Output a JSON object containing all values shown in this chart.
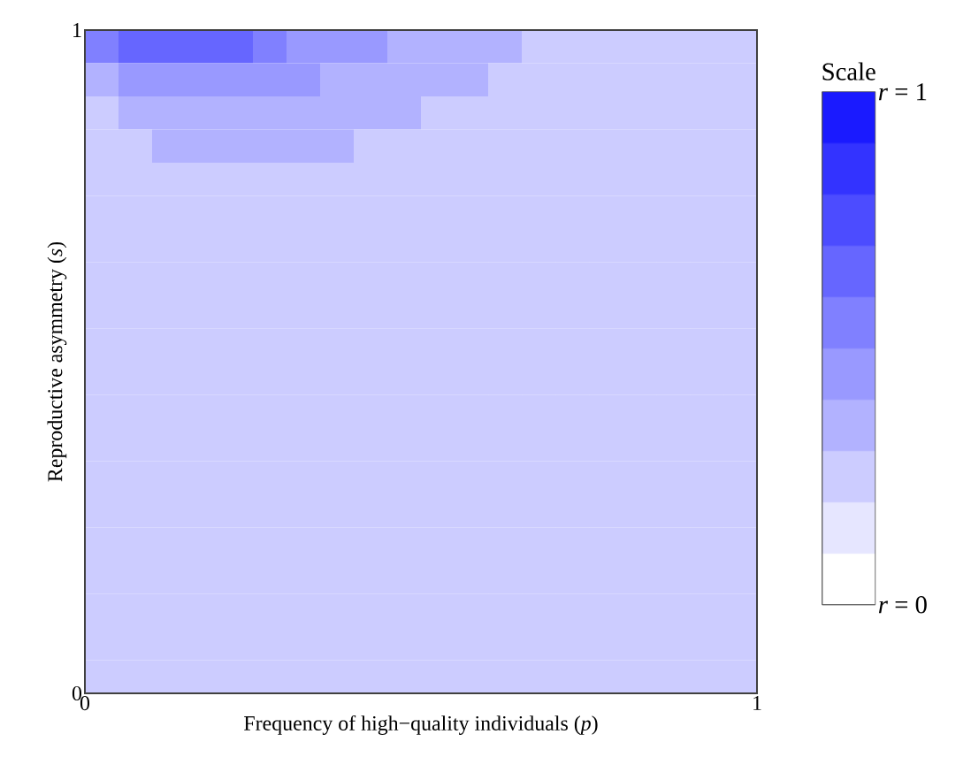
{
  "chart_data": {
    "type": "heatmap",
    "xlabel": "Frequency of high−quality individuals (*p*)",
    "ylabel": "Reproductive asymmetry (*s*)",
    "clabel": "Scale",
    "color": "#0000ff",
    "xlim": [
      0,
      1
    ],
    "xticks": [
      0,
      1
    ],
    "ylim": [
      0,
      1
    ],
    "yticks": [
      0,
      1
    ],
    "clim": [
      0,
      1
    ],
    "cticks": [
      {
        "value": 0,
        "label": "*r* = 0"
      },
      {
        "value": 1,
        "label": "*r* = 1"
      }
    ],
    "cells": [
      [
        0.55,
        0.65,
        0.65,
        0.65,
        0.65,
        0.55,
        0.45,
        0.45,
        0.45,
        0.35,
        0.35,
        0.35,
        0.35,
        0.25,
        0.25,
        0.25,
        0.25,
        0.25,
        0.25,
        0.25
      ],
      [
        0.35,
        0.45,
        0.45,
        0.45,
        0.45,
        0.45,
        0.45,
        0.35,
        0.35,
        0.35,
        0.35,
        0.35,
        0.25,
        0.25,
        0.25,
        0.25,
        0.25,
        0.25,
        0.25,
        0.25
      ],
      [
        0.25,
        0.35,
        0.35,
        0.35,
        0.35,
        0.35,
        0.35,
        0.35,
        0.35,
        0.35,
        0.25,
        0.25,
        0.25,
        0.25,
        0.25,
        0.25,
        0.25,
        0.25,
        0.25,
        0.25
      ],
      [
        0.25,
        0.25,
        0.35,
        0.35,
        0.35,
        0.35,
        0.35,
        0.35,
        0.25,
        0.25,
        0.25,
        0.25,
        0.25,
        0.25,
        0.25,
        0.25,
        0.25,
        0.25,
        0.25,
        0.25
      ],
      [
        0.25,
        0.25,
        0.25,
        0.25,
        0.25,
        0.25,
        0.25,
        0.25,
        0.25,
        0.25,
        0.25,
        0.25,
        0.25,
        0.25,
        0.25,
        0.25,
        0.25,
        0.25,
        0.25,
        0.25
      ],
      [
        0.25,
        0.25,
        0.25,
        0.25,
        0.25,
        0.25,
        0.25,
        0.25,
        0.25,
        0.25,
        0.25,
        0.25,
        0.25,
        0.25,
        0.25,
        0.25,
        0.25,
        0.25,
        0.25,
        0.25
      ],
      [
        0.25,
        0.25,
        0.25,
        0.25,
        0.25,
        0.25,
        0.25,
        0.25,
        0.25,
        0.25,
        0.25,
        0.25,
        0.25,
        0.25,
        0.25,
        0.25,
        0.25,
        0.25,
        0.25,
        0.25
      ],
      [
        0.25,
        0.25,
        0.25,
        0.25,
        0.25,
        0.25,
        0.25,
        0.25,
        0.25,
        0.25,
        0.25,
        0.25,
        0.25,
        0.25,
        0.25,
        0.25,
        0.25,
        0.25,
        0.25,
        0.25
      ],
      [
        0.25,
        0.25,
        0.25,
        0.25,
        0.25,
        0.25,
        0.25,
        0.25,
        0.25,
        0.25,
        0.25,
        0.25,
        0.25,
        0.25,
        0.25,
        0.25,
        0.25,
        0.25,
        0.25,
        0.25
      ],
      [
        0.25,
        0.25,
        0.25,
        0.25,
        0.25,
        0.25,
        0.25,
        0.25,
        0.25,
        0.25,
        0.25,
        0.25,
        0.25,
        0.25,
        0.25,
        0.25,
        0.25,
        0.25,
        0.25,
        0.25
      ],
      [
        0.25,
        0.25,
        0.25,
        0.25,
        0.25,
        0.25,
        0.25,
        0.25,
        0.25,
        0.25,
        0.25,
        0.25,
        0.25,
        0.25,
        0.25,
        0.25,
        0.25,
        0.25,
        0.25,
        0.25
      ],
      [
        0.25,
        0.25,
        0.25,
        0.25,
        0.25,
        0.25,
        0.25,
        0.25,
        0.25,
        0.25,
        0.25,
        0.25,
        0.25,
        0.25,
        0.25,
        0.25,
        0.25,
        0.25,
        0.25,
        0.25
      ],
      [
        0.25,
        0.25,
        0.25,
        0.25,
        0.25,
        0.25,
        0.25,
        0.25,
        0.25,
        0.25,
        0.25,
        0.25,
        0.25,
        0.25,
        0.25,
        0.25,
        0.25,
        0.25,
        0.25,
        0.25
      ],
      [
        0.25,
        0.25,
        0.25,
        0.25,
        0.25,
        0.25,
        0.25,
        0.25,
        0.25,
        0.25,
        0.25,
        0.25,
        0.25,
        0.25,
        0.25,
        0.25,
        0.25,
        0.25,
        0.25,
        0.25
      ],
      [
        0.25,
        0.25,
        0.25,
        0.25,
        0.25,
        0.25,
        0.25,
        0.25,
        0.25,
        0.25,
        0.25,
        0.25,
        0.25,
        0.25,
        0.25,
        0.25,
        0.25,
        0.25,
        0.25,
        0.25
      ],
      [
        0.25,
        0.25,
        0.25,
        0.25,
        0.25,
        0.25,
        0.25,
        0.25,
        0.25,
        0.25,
        0.25,
        0.25,
        0.25,
        0.25,
        0.25,
        0.25,
        0.25,
        0.25,
        0.25,
        0.25
      ],
      [
        0.25,
        0.25,
        0.25,
        0.25,
        0.25,
        0.25,
        0.25,
        0.25,
        0.25,
        0.25,
        0.25,
        0.25,
        0.25,
        0.25,
        0.25,
        0.25,
        0.25,
        0.25,
        0.25,
        0.25
      ],
      [
        0.25,
        0.25,
        0.25,
        0.25,
        0.25,
        0.25,
        0.25,
        0.25,
        0.25,
        0.25,
        0.25,
        0.25,
        0.25,
        0.25,
        0.25,
        0.25,
        0.25,
        0.25,
        0.25,
        0.25
      ],
      [
        0.25,
        0.25,
        0.25,
        0.25,
        0.25,
        0.25,
        0.25,
        0.25,
        0.25,
        0.25,
        0.25,
        0.25,
        0.25,
        0.25,
        0.25,
        0.25,
        0.25,
        0.25,
        0.25,
        0.25
      ],
      [
        0.25,
        0.25,
        0.25,
        0.25,
        0.25,
        0.25,
        0.25,
        0.25,
        0.25,
        0.25,
        0.25,
        0.25,
        0.25,
        0.25,
        0.25,
        0.25,
        0.25,
        0.25,
        0.25,
        0.25
      ]
    ]
  }
}
